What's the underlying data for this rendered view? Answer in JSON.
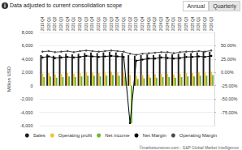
{
  "page": {
    "note": "Data adjusted to current consolidation scope",
    "buttons": [
      "Annual",
      "Quarterly"
    ],
    "source": "©marketscreener.com - S&P Global Market Intelligence"
  },
  "chart_data": {
    "type": "bar",
    "ylabel": "Million USD",
    "categories": [
      "2019 Q4",
      "2020 Q1",
      "2020 Q2",
      "2020 Q3",
      "2020 Q4",
      "2021 Q1",
      "2021 Q2",
      "2021 Q3",
      "2021 Q4",
      "2022 Q1",
      "2022 Q2",
      "2022 Q3",
      "2022 Q4",
      "2023 Q1",
      "2023 Q2",
      "2023 Q3",
      "2023 Q4",
      "2024 Q1",
      "2024 Q2",
      "2024 Q3",
      "2024 Q4",
      "2025 Q1",
      "2025 Q2",
      "2025 Q3",
      "2025 Q4",
      "2026 Q1",
      "2026 Q2",
      "2026 Q3"
    ],
    "ylim": [
      -6000,
      8000
    ],
    "yticks": [
      {
        "value": -6000,
        "label": "-6,000"
      },
      {
        "value": -4000,
        "label": "-4,000"
      },
      {
        "value": -2000,
        "label": "-2,000"
      },
      0,
      {
        "value": 2000,
        "label": "2,000"
      },
      {
        "value": 4000,
        "label": "4,000"
      },
      {
        "value": 6000,
        "label": "6,000"
      },
      {
        "value": 8000,
        "label": "8,000"
      }
    ],
    "y2lim": [
      -100,
      75
    ],
    "y2ticks": [
      {
        "value": -75,
        "label": "-75.00%"
      },
      {
        "value": -50,
        "label": "-50.00%"
      },
      {
        "value": -25,
        "label": "-25.00%"
      },
      {
        "value": 0,
        "label": "0.00%"
      },
      {
        "value": 25,
        "label": "25.00%"
      },
      {
        "value": 50,
        "label": "50.00%"
      }
    ],
    "grid": true,
    "legend": "bottom",
    "series": [
      {
        "name": "Sales",
        "type": "bar",
        "color": "#1f1f1f",
        "values": [
          4600,
          4700,
          4500,
          4600,
          4800,
          4700,
          4800,
          4900,
          5000,
          4900,
          5000,
          5100,
          5000,
          4900,
          4600,
          4500,
          4600,
          4700,
          4600,
          4700,
          4800,
          4700,
          4800,
          4900,
          4900,
          5000,
          5100,
          5100
        ]
      },
      {
        "name": "Operating profit",
        "type": "bar",
        "color": "#f2c230",
        "values": [
          1800,
          1900,
          1700,
          1800,
          1900,
          1800,
          1900,
          2000,
          2000,
          1900,
          2000,
          2100,
          2000,
          1900,
          1600,
          1500,
          1600,
          1700,
          1700,
          1800,
          1800,
          1700,
          1800,
          1900,
          1900,
          2000,
          2000,
          2100
        ]
      },
      {
        "name": "Net income",
        "type": "bar",
        "color": "#6cb52d",
        "values": [
          1300,
          1400,
          1200,
          1300,
          1400,
          1300,
          1400,
          1500,
          1500,
          1400,
          1500,
          1600,
          1500,
          1400,
          -5600,
          1000,
          1100,
          1200,
          1200,
          1300,
          1300,
          1200,
          1300,
          1400,
          1400,
          1500,
          1500,
          1600
        ]
      },
      {
        "name": "Net Margin",
        "type": "line",
        "axis": "y2",
        "marker": "circle",
        "color": "#000000",
        "values": [
          28,
          30,
          27,
          28,
          29,
          28,
          29,
          31,
          30,
          29,
          30,
          31,
          30,
          29,
          -95,
          22,
          24,
          26,
          26,
          28,
          27,
          26,
          27,
          29,
          29,
          30,
          29,
          31
        ]
      },
      {
        "name": "Operating Margin",
        "type": "line",
        "axis": "y2",
        "marker": "circle",
        "color": "#4a4a4a",
        "values": [
          39,
          40,
          38,
          39,
          40,
          38,
          40,
          41,
          40,
          39,
          40,
          41,
          40,
          39,
          35,
          33,
          35,
          36,
          37,
          38,
          38,
          36,
          38,
          39,
          39,
          40,
          39,
          41
        ]
      }
    ]
  }
}
